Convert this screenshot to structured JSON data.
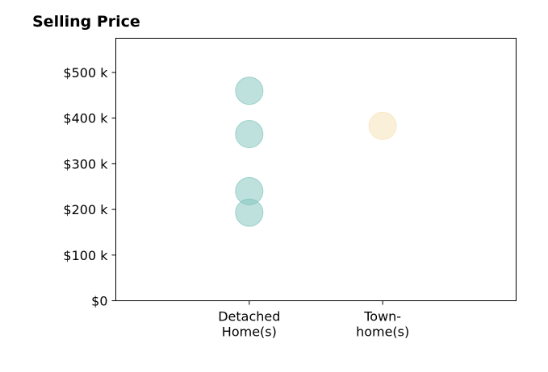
{
  "chart_data": {
    "type": "scatter",
    "title": "Selling Price",
    "xlabel": "",
    "ylabel": "",
    "categories": [
      [
        "Detached",
        "Home(s)"
      ],
      [
        "Town-",
        "home(s)"
      ]
    ],
    "y_ticks": [
      {
        "value": 0,
        "label": "$0"
      },
      {
        "value": 100000,
        "label": "$100 k"
      },
      {
        "value": 200000,
        "label": "$200 k"
      },
      {
        "value": 300000,
        "label": "$300 k"
      },
      {
        "value": 400000,
        "label": "$400 k"
      },
      {
        "value": 500000,
        "label": "$500 k"
      }
    ],
    "ylim": [
      0,
      575000
    ],
    "x_range": [
      -1,
      2
    ],
    "grid": false,
    "points": [
      {
        "category": 0,
        "value": 460000,
        "color": "#80c4bc"
      },
      {
        "category": 0,
        "value": 365000,
        "color": "#80c4bc"
      },
      {
        "category": 0,
        "value": 240000,
        "color": "#80c4bc"
      },
      {
        "category": 0,
        "value": 193000,
        "color": "#80c4bc"
      },
      {
        "category": 1,
        "value": 383000,
        "color": "#f6e2b3"
      }
    ],
    "marker_opacity": 0.5
  }
}
